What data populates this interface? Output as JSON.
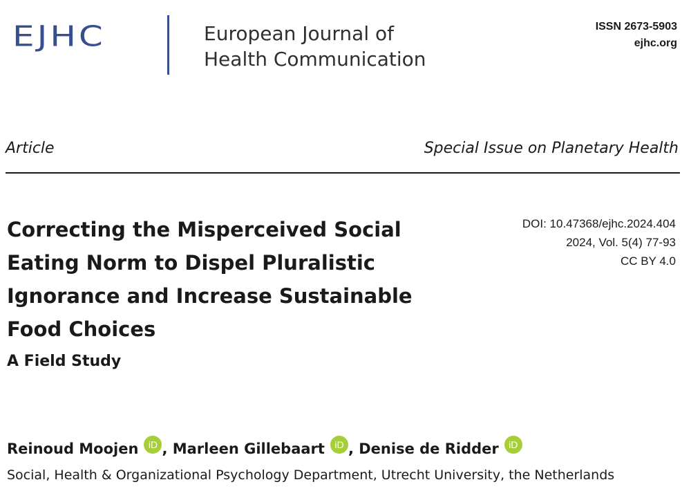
{
  "header": {
    "logo_text": "EJHC",
    "journal_name_line1": "European Journal of",
    "journal_name_line2": "Health Communication",
    "issn": "ISSN 2673-5903",
    "website": "ejhc.org",
    "brand_color": "#36508f"
  },
  "article": {
    "type": "Article",
    "special_issue": "Special Issue on Planetary Health",
    "title_lines": [
      "Correcting the Misperceived Social",
      "Eating Norm to Dispel Pluralistic",
      "Ignorance and Increase Sustainable",
      "Food Choices"
    ],
    "subtitle": "A Field Study",
    "doi": "DOI: 10.47368/ejhc.2024.404",
    "volume": "2024, Vol. 5(4) 77-93",
    "license": "CC BY 4.0"
  },
  "authors": [
    {
      "name": "Reinoud Moojen",
      "separator": ", "
    },
    {
      "name": "Marleen Gillebaart",
      "separator": ", "
    },
    {
      "name": "Denise de Ridder",
      "separator": ""
    }
  ],
  "orcid_icon": {
    "label": "iD",
    "color": "#a6ce39"
  },
  "affiliation": "Social, Health & Organizational Psychology Department, Utrecht University, the Netherlands"
}
